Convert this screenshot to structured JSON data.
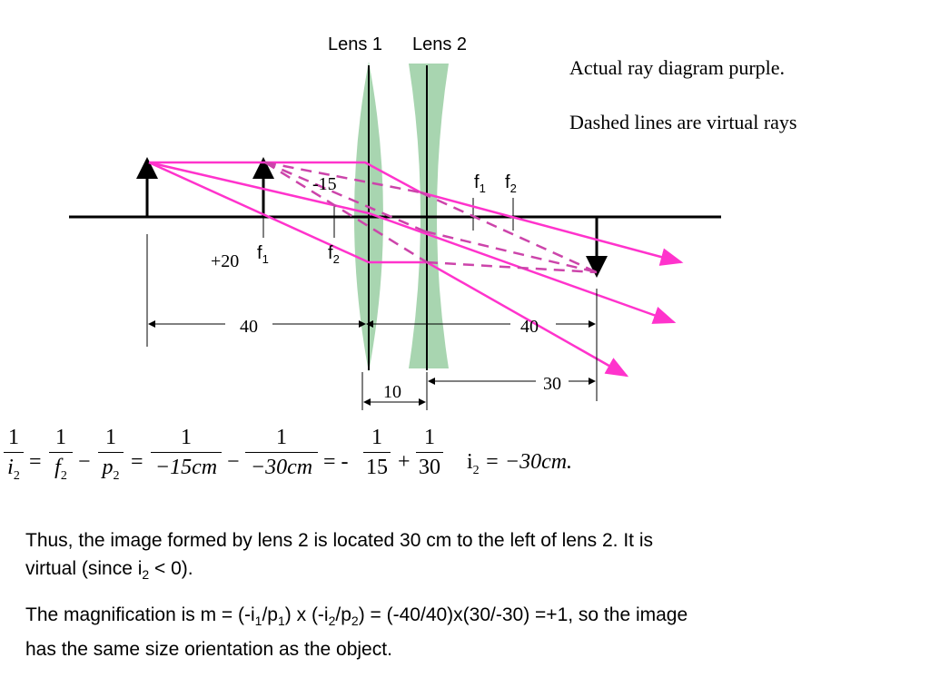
{
  "diagram": {
    "lens1_label": "Lens 1",
    "lens2_label": "Lens 2",
    "f1_upper": "f",
    "f1_upper_sub": "1",
    "f2_upper": "f",
    "f2_upper_sub": "2",
    "f1_lower": "f",
    "f1_lower_sub": "1",
    "f2_lower": "f",
    "f2_lower_sub": "2",
    "label_minus15": "-15",
    "label_plus20": "+20",
    "dim_40_left": "40",
    "dim_40_right": "40",
    "dim_10": "10",
    "dim_30": "30",
    "colors": {
      "ray": "#ff33cc",
      "virtual": "#cc44aa",
      "lens": "#a8d5b0",
      "axis": "#000000"
    }
  },
  "notes": {
    "actual_ray": "Actual ray diagram purple.",
    "dashed": "Dashed lines are virtual rays"
  },
  "equation": {
    "t1_num": "1",
    "t1_den": "i",
    "t1_den_sub": "2",
    "t2_num": "1",
    "t2_den": "f",
    "t2_den_sub": "2",
    "t3_num": "1",
    "t3_den": "p",
    "t3_den_sub": "2",
    "t4_num": "1",
    "t4_den": "−15cm",
    "t5_num": "1",
    "t5_den": "−30cm",
    "t6_num": "1",
    "t6_den": "15",
    "t7_num": "1",
    "t7_den": "30",
    "eq1": "=",
    "minus1": "−",
    "eq2": "=",
    "minus2": "−",
    "eq3": "= -",
    "plus": "+",
    "result": "= −30cm.",
    "result_var": "i",
    "result_sub": "2"
  },
  "text": {
    "para1_a": "Thus, the image formed by lens 2 is located 30 cm to the left of lens 2. It is",
    "para1_b": "virtual (since i",
    "para1_b_sub": "2",
    "para1_b_end": " < 0).",
    "para2_a": "The magnification is m = (-i",
    "para2_s1": "1",
    "para2_b": "/p",
    "para2_s2": "1",
    "para2_c": ") x (-i",
    "para2_s3": "2",
    "para2_d": "/p",
    "para2_s4": "2",
    "para2_e": ") =  (-40/40)x(30/-30) =+1, so the image",
    "para2_f": "has the same size orientation as the object."
  }
}
